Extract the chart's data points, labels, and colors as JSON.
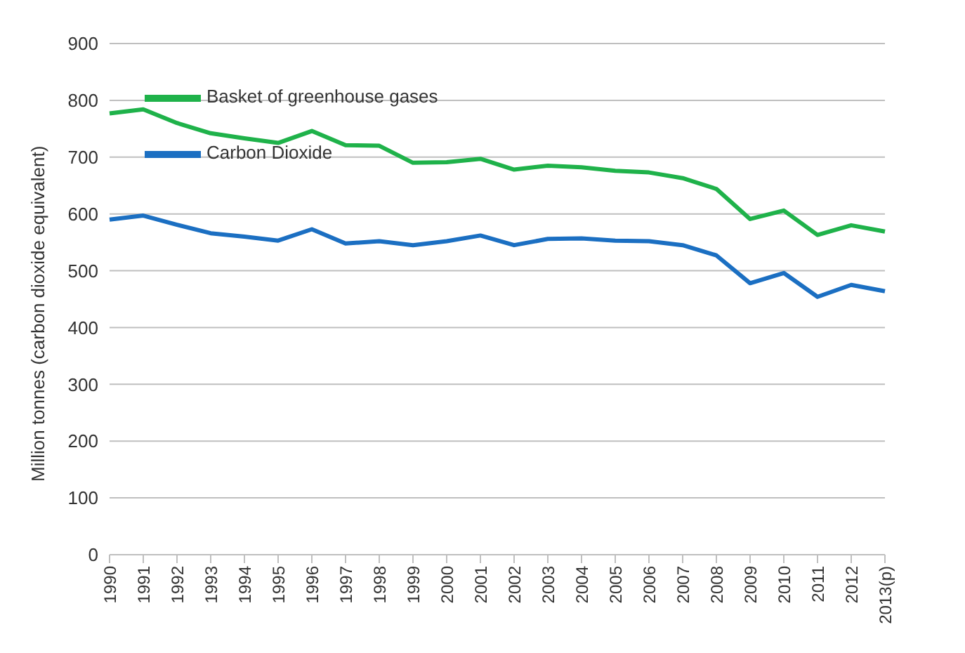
{
  "chart_data": {
    "type": "line",
    "ylabel": "Million tonnes (carbon dioxide equivalent)",
    "categories": [
      "1990",
      "1991",
      "1992",
      "1993",
      "1994",
      "1995",
      "1996",
      "1997",
      "1998",
      "1999",
      "2000",
      "2001",
      "2002",
      "2003",
      "2004",
      "2005",
      "2006",
      "2007",
      "2008",
      "2009",
      "2010",
      "2011",
      "2012",
      "2013(p)"
    ],
    "series": [
      {
        "name": "Basket of greenhouse gases",
        "color": "#1fb24a",
        "values": [
          777,
          784,
          760,
          742,
          733,
          725,
          746,
          721,
          720,
          690,
          691,
          697,
          678,
          685,
          682,
          676,
          673,
          663,
          644,
          591,
          606,
          563,
          580,
          569
        ]
      },
      {
        "name": "Carbon Dioxide",
        "color": "#1b6fc2",
        "values": [
          590,
          597,
          581,
          566,
          560,
          553,
          573,
          548,
          552,
          545,
          552,
          562,
          545,
          556,
          557,
          553,
          552,
          545,
          527,
          478,
          496,
          454,
          475,
          464
        ]
      }
    ],
    "ylim": [
      0,
      900
    ],
    "yticks": [
      0,
      100,
      200,
      300,
      400,
      500,
      600,
      700,
      800,
      900
    ],
    "grid": "y",
    "legend": "top",
    "marker": "none",
    "line_style": "solid"
  }
}
